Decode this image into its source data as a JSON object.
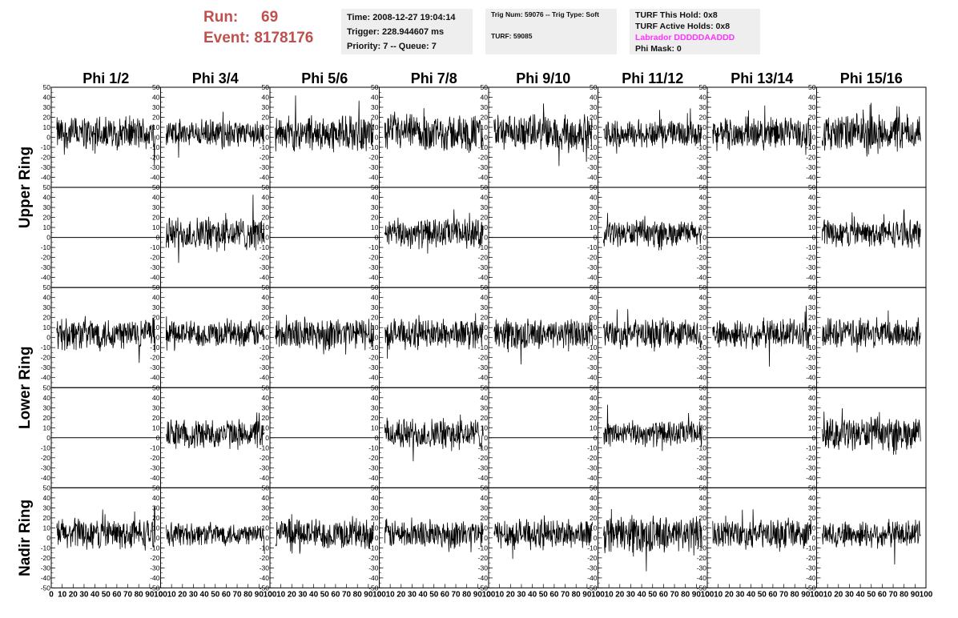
{
  "header": {
    "run_label": "Run:",
    "run_value": "69",
    "event_label": "Event:",
    "event_value": "8178176"
  },
  "time_box": {
    "time": "Time: 2008-12-27 19:04:14",
    "trigger": "Trigger: 228.944607 ms",
    "priority": "Priority: 7 -- Queue: 7"
  },
  "trig_box": {
    "trig": "Trig Num: 59076 -- Trig Type: Soft",
    "turf": "TURF: 59085"
  },
  "turf_box": {
    "this_hold": "TURF This Hold: 0x8",
    "active_holds": "TURF Active Holds: 0x8",
    "labrador": "Labrador DDDDDAADDD",
    "phi_mask": "Phi Mask: 0"
  },
  "colors": {
    "run_text": "#c0504d",
    "labrador_text": "#ff33ff",
    "box_bg": "#eeeeee",
    "trace": "#000000"
  },
  "chart_data": {
    "type": "line",
    "columns": [
      "Phi 1/2",
      "Phi 3/4",
      "Phi 5/6",
      "Phi 7/8",
      "Phi 9/10",
      "Phi 11/12",
      "Phi 13/14",
      "Phi 15/16"
    ],
    "ring_labels": [
      "Upper Ring",
      "Lower Ring",
      "Nadir Ring"
    ],
    "rows": [
      {
        "ring": "Upper Ring",
        "active": [
          true,
          true,
          true,
          true,
          true,
          true,
          true,
          true
        ],
        "amplitude": [
          16,
          13,
          17,
          18,
          17,
          13,
          15,
          18
        ]
      },
      {
        "ring": "Upper Ring",
        "active": [
          false,
          true,
          false,
          true,
          false,
          true,
          false,
          true
        ],
        "amplitude": [
          0,
          16,
          0,
          14,
          0,
          12,
          0,
          13
        ]
      },
      {
        "ring": "Lower Ring",
        "active": [
          true,
          true,
          true,
          true,
          true,
          true,
          true,
          true
        ],
        "amplitude": [
          16,
          13,
          16,
          14,
          14,
          14,
          14,
          14
        ]
      },
      {
        "ring": "Lower Ring",
        "active": [
          false,
          true,
          false,
          true,
          false,
          true,
          false,
          true
        ],
        "amplitude": [
          0,
          14,
          0,
          15,
          0,
          12,
          0,
          15
        ]
      },
      {
        "ring": "Nadir Ring",
        "active": [
          true,
          true,
          true,
          true,
          true,
          true,
          true,
          true
        ],
        "amplitude": [
          15,
          11,
          15,
          14,
          14,
          17,
          14,
          13
        ]
      }
    ],
    "ylim": [
      -50,
      50
    ],
    "y_ticks": [
      50,
      40,
      30,
      20,
      10,
      0,
      -10,
      -20,
      -30,
      -40,
      -50
    ],
    "y_ticks_main": [
      50,
      40,
      30,
      20,
      10,
      0,
      -10,
      -20,
      -30,
      -40
    ],
    "xlim": [
      0,
      100
    ],
    "x_ticks": [
      "0",
      "10",
      "20",
      "30",
      "40",
      "50",
      "60",
      "70",
      "80",
      "90",
      "100"
    ],
    "grid": false
  }
}
